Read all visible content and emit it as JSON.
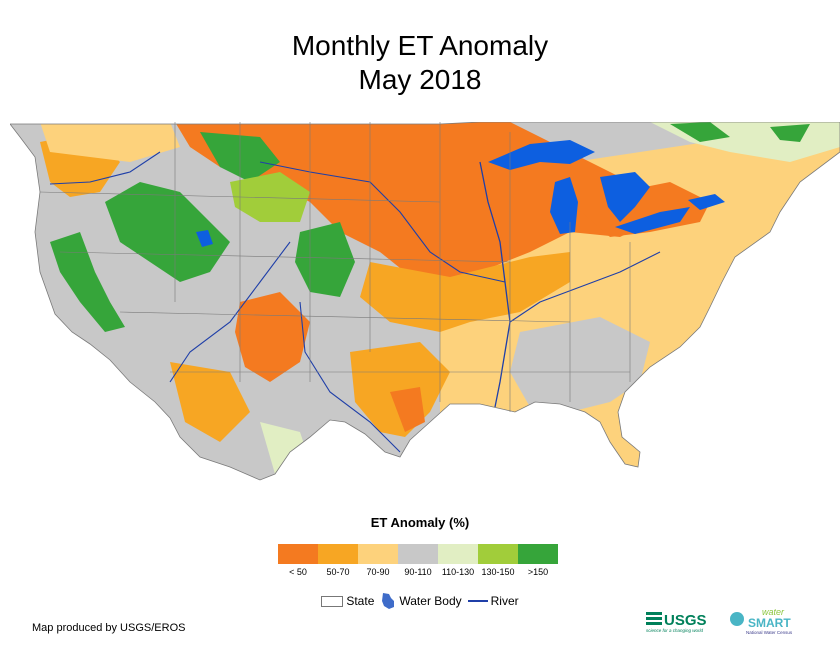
{
  "title": {
    "line1": "Monthly ET Anomaly",
    "line2": "May 2018"
  },
  "legend": {
    "title": "ET Anomaly (%)",
    "classes": [
      {
        "label": "< 50",
        "color": "#f47a20"
      },
      {
        "label": "50-70",
        "color": "#f7a623"
      },
      {
        "label": "70-90",
        "color": "#fdd27c"
      },
      {
        "label": "90-110",
        "color": "#c8c8c8"
      },
      {
        "label": "110-130",
        "color": "#e1eec3"
      },
      {
        "label": "130-150",
        "color": "#a1cd3a"
      },
      {
        "label": ">150",
        "color": "#36a53a"
      }
    ]
  },
  "symbols": {
    "state": "State",
    "water_body": "Water Body",
    "river": "River"
  },
  "credit": "Map produced by USGS/EROS",
  "logos": {
    "usgs": "USGS",
    "usgs_tagline": "science for a changing world",
    "watersmart_top": "water",
    "watersmart_main": "SMART",
    "watersmart_sub": "National Water Census"
  },
  "colors": {
    "water": "#0d5fe0",
    "river": "#1f3fa8",
    "state_border": "#7a7a7a",
    "usgs_green": "#00805a",
    "watersmart_teal": "#49b5c5"
  }
}
